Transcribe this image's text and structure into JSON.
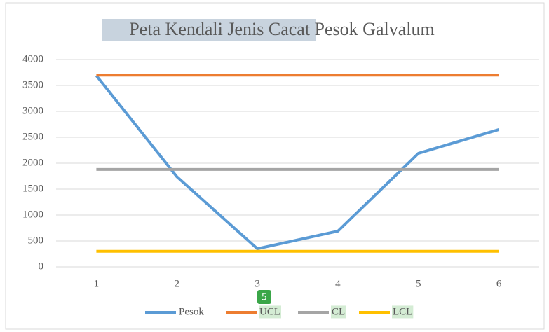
{
  "chart_data": {
    "type": "line",
    "title": "Peta Kendali Jenis Cacat Pesok Galvalum",
    "categories": [
      1,
      2,
      3,
      4,
      5,
      6
    ],
    "series": [
      {
        "name": "Pesok",
        "color": "#5b9bd5",
        "values": [
          3690,
          1740,
          350,
          690,
          2190,
          2650
        ]
      },
      {
        "name": "UCL",
        "color": "#ed7d31",
        "values": [
          3700,
          3700,
          3700,
          3700,
          3700,
          3700
        ]
      },
      {
        "name": "CL",
        "color": "#a5a5a5",
        "values": [
          1880,
          1880,
          1880,
          1880,
          1880,
          1880
        ]
      },
      {
        "name": "LCL",
        "color": "#ffc000",
        "values": [
          300,
          300,
          300,
          300,
          300,
          300
        ]
      }
    ],
    "ylim": [
      0,
      4000
    ],
    "yticks": [
      0,
      500,
      1000,
      1500,
      2000,
      2500,
      3000,
      3500,
      4000
    ],
    "grid": true,
    "legend": "bottom",
    "annotation": "5"
  }
}
